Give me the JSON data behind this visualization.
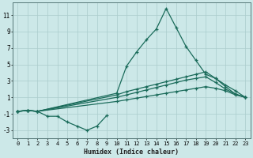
{
  "xlabel": "Humidex (Indice chaleur)",
  "bg_color": "#cce8e8",
  "grid_color": "#aacccc",
  "line_color": "#1a6b5a",
  "xlim": [
    -0.5,
    23.5
  ],
  "ylim": [
    -4.0,
    12.5
  ],
  "yticks": [
    -3,
    -1,
    1,
    3,
    5,
    7,
    9,
    11
  ],
  "xticks": [
    0,
    1,
    2,
    3,
    4,
    5,
    6,
    7,
    8,
    9,
    10,
    11,
    12,
    13,
    14,
    15,
    16,
    17,
    18,
    19,
    20,
    21,
    22,
    23
  ],
  "series": [
    {
      "x": [
        0,
        1,
        2,
        10,
        11,
        12,
        13,
        14,
        15,
        16,
        17,
        18,
        19,
        20,
        21,
        22,
        23
      ],
      "y": [
        -0.7,
        -0.6,
        -0.7,
        1.5,
        4.8,
        6.5,
        8.0,
        9.3,
        11.8,
        9.5,
        7.2,
        5.5,
        3.8,
        3.3,
        2.3,
        1.4,
        1.0
      ]
    },
    {
      "x": [
        0,
        1,
        2,
        10,
        11,
        12,
        13,
        14,
        15,
        16,
        17,
        18,
        19,
        20,
        21,
        22,
        23
      ],
      "y": [
        -0.7,
        -0.6,
        -0.7,
        1.3,
        1.7,
        2.0,
        2.3,
        2.6,
        2.9,
        3.2,
        3.5,
        3.8,
        4.1,
        3.3,
        2.5,
        1.8,
        1.0
      ]
    },
    {
      "x": [
        0,
        1,
        2,
        10,
        11,
        12,
        13,
        14,
        15,
        16,
        17,
        18,
        19,
        20,
        21,
        22,
        23
      ],
      "y": [
        -0.7,
        -0.6,
        -0.7,
        1.0,
        1.3,
        1.6,
        1.9,
        2.2,
        2.5,
        2.8,
        3.1,
        3.3,
        3.5,
        2.8,
        2.0,
        1.4,
        1.0
      ]
    },
    {
      "x": [
        0,
        1,
        2,
        10,
        11,
        12,
        13,
        14,
        15,
        16,
        17,
        18,
        19,
        20,
        21,
        22,
        23
      ],
      "y": [
        -0.7,
        -0.6,
        -0.7,
        0.5,
        0.7,
        0.9,
        1.1,
        1.3,
        1.5,
        1.7,
        1.9,
        2.1,
        2.3,
        2.1,
        1.8,
        1.3,
        1.0
      ]
    },
    {
      "x": [
        0,
        1,
        2,
        3,
        4,
        5,
        6,
        7,
        8,
        9
      ],
      "y": [
        -0.7,
        -0.6,
        -0.7,
        -1.3,
        -1.3,
        -2.0,
        -2.5,
        -3.0,
        -2.5,
        -1.2
      ]
    }
  ]
}
